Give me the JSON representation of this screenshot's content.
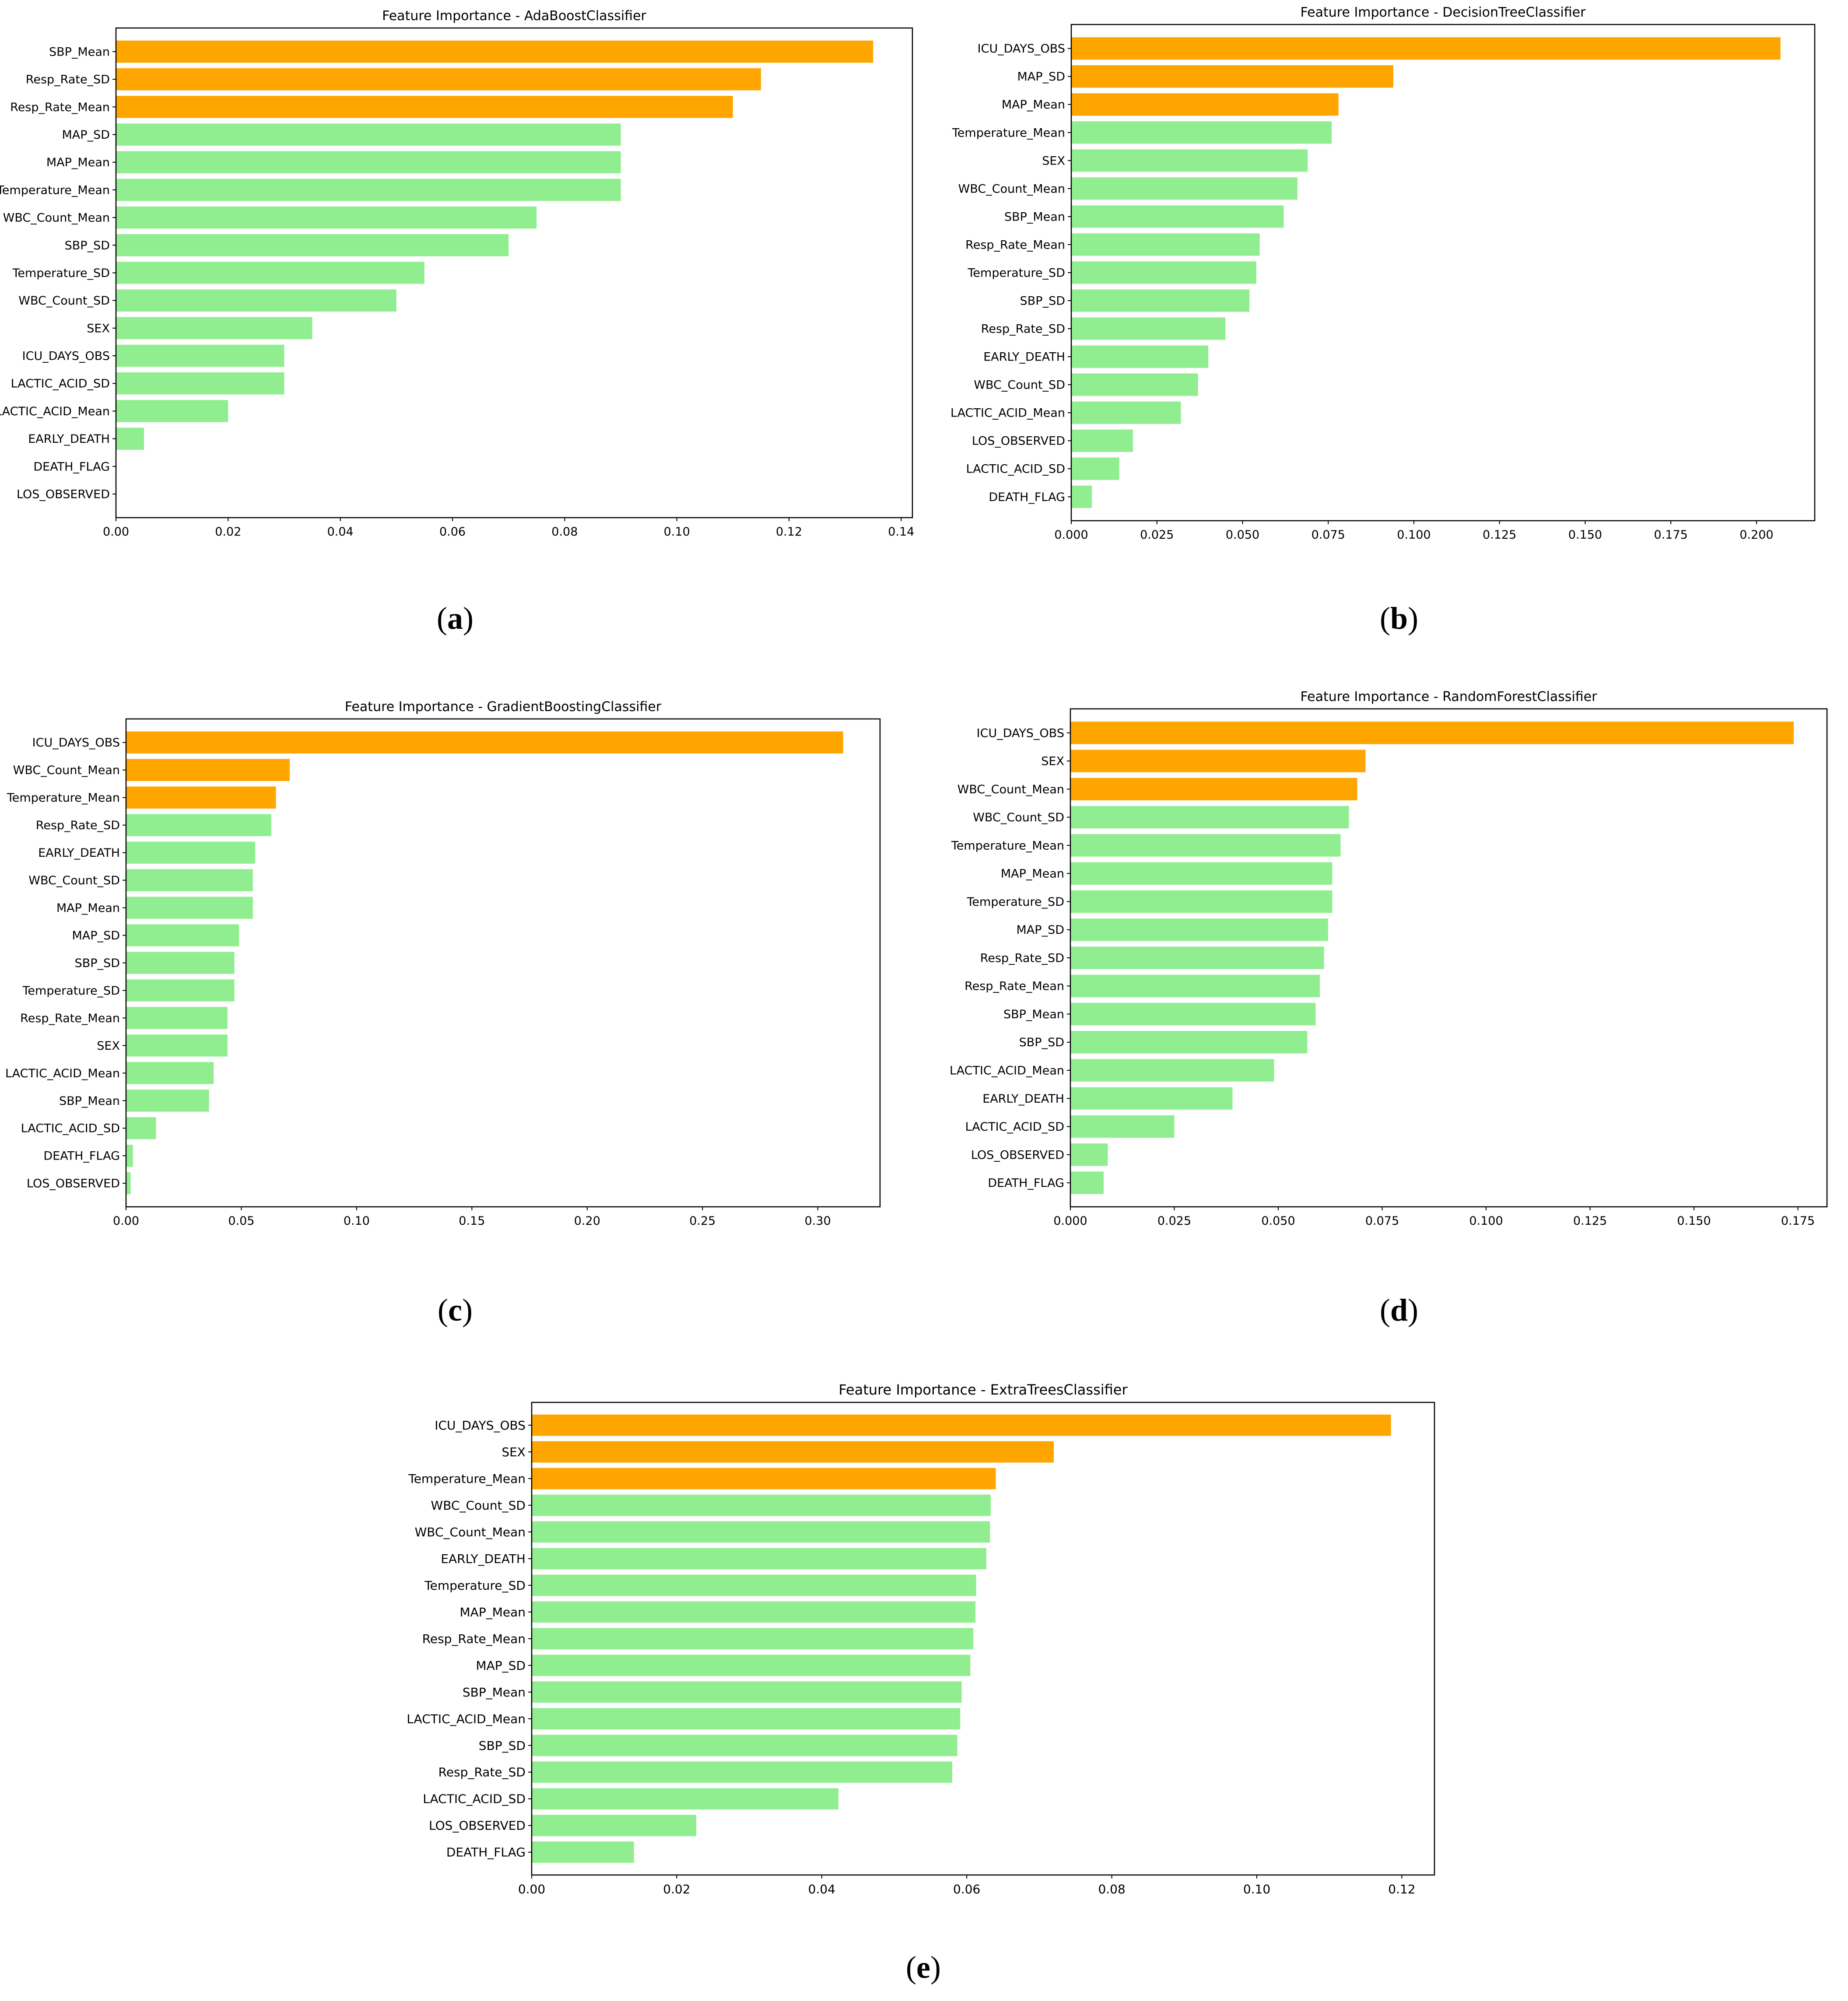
{
  "figure": {
    "captions": [
      "a",
      "b",
      "c",
      "d",
      "e"
    ]
  },
  "colors": {
    "highlight": "#FFA500",
    "normal": "#90EE90",
    "frame": "#000000",
    "text": "#000000"
  },
  "chart_data": [
    {
      "id": "a",
      "type": "bar",
      "orientation": "horizontal",
      "title": "Feature Importance - AdaBoostClassifier",
      "xlabel": "",
      "ylabel": "",
      "xlim": [
        0,
        0.142
      ],
      "xticks": [
        0.0,
        0.02,
        0.04,
        0.06,
        0.08,
        0.1,
        0.12,
        0.14
      ],
      "tick_decimals": 2,
      "categories": [
        "SBP_Mean",
        "Resp_Rate_SD",
        "Resp_Rate_Mean",
        "MAP_SD",
        "MAP_Mean",
        "Temperature_Mean",
        "WBC_Count_Mean",
        "SBP_SD",
        "Temperature_SD",
        "WBC_Count_SD",
        "SEX",
        "ICU_DAYS_OBS",
        "LACTIC_ACID_SD",
        "LACTIC_ACID_Mean",
        "EARLY_DEATH",
        "DEATH_FLAG",
        "LOS_OBSERVED"
      ],
      "values": [
        0.135,
        0.115,
        0.11,
        0.09,
        0.09,
        0.09,
        0.075,
        0.07,
        0.055,
        0.05,
        0.035,
        0.03,
        0.03,
        0.02,
        0.005,
        0.0,
        0.0
      ],
      "highlight_top": 3,
      "grid": false
    },
    {
      "id": "b",
      "type": "bar",
      "orientation": "horizontal",
      "title": "Feature Importance - DecisionTreeClassifier",
      "xlabel": "",
      "ylabel": "",
      "xlim": [
        0,
        0.217
      ],
      "xticks": [
        0.0,
        0.025,
        0.05,
        0.075,
        0.1,
        0.125,
        0.15,
        0.175,
        0.2
      ],
      "tick_decimals": 3,
      "categories": [
        "ICU_DAYS_OBS",
        "MAP_SD",
        "MAP_Mean",
        "Temperature_Mean",
        "SEX",
        "WBC_Count_Mean",
        "SBP_Mean",
        "Resp_Rate_Mean",
        "Temperature_SD",
        "SBP_SD",
        "Resp_Rate_SD",
        "EARLY_DEATH",
        "WBC_Count_SD",
        "LACTIC_ACID_Mean",
        "LOS_OBSERVED",
        "LACTIC_ACID_SD",
        "DEATH_FLAG"
      ],
      "values": [
        0.207,
        0.094,
        0.078,
        0.076,
        0.069,
        0.066,
        0.062,
        0.055,
        0.054,
        0.052,
        0.045,
        0.04,
        0.037,
        0.032,
        0.018,
        0.014,
        0.006
      ],
      "highlight_top": 3,
      "grid": false
    },
    {
      "id": "c",
      "type": "bar",
      "orientation": "horizontal",
      "title": "Feature Importance - GradientBoostingClassifier",
      "xlabel": "",
      "ylabel": "",
      "xlim": [
        0,
        0.327
      ],
      "xticks": [
        0.0,
        0.05,
        0.1,
        0.15,
        0.2,
        0.25,
        0.3
      ],
      "tick_decimals": 2,
      "categories": [
        "ICU_DAYS_OBS",
        "WBC_Count_Mean",
        "Temperature_Mean",
        "Resp_Rate_SD",
        "EARLY_DEATH",
        "WBC_Count_SD",
        "MAP_Mean",
        "MAP_SD",
        "SBP_SD",
        "Temperature_SD",
        "Resp_Rate_Mean",
        "SEX",
        "LACTIC_ACID_Mean",
        "SBP_Mean",
        "LACTIC_ACID_SD",
        "DEATH_FLAG",
        "LOS_OBSERVED"
      ],
      "values": [
        0.311,
        0.071,
        0.065,
        0.063,
        0.056,
        0.055,
        0.055,
        0.049,
        0.047,
        0.047,
        0.044,
        0.044,
        0.038,
        0.036,
        0.013,
        0.003,
        0.002
      ],
      "highlight_top": 3,
      "grid": false
    },
    {
      "id": "d",
      "type": "bar",
      "orientation": "horizontal",
      "title": "Feature Importance - RandomForestClassifier",
      "xlabel": "",
      "ylabel": "",
      "xlim": [
        0,
        0.182
      ],
      "xticks": [
        0.0,
        0.025,
        0.05,
        0.075,
        0.1,
        0.125,
        0.15,
        0.175
      ],
      "tick_decimals": 3,
      "categories": [
        "ICU_DAYS_OBS",
        "SEX",
        "WBC_Count_Mean",
        "WBC_Count_SD",
        "Temperature_Mean",
        "MAP_Mean",
        "Temperature_SD",
        "MAP_SD",
        "Resp_Rate_SD",
        "Resp_Rate_Mean",
        "SBP_Mean",
        "SBP_SD",
        "LACTIC_ACID_Mean",
        "EARLY_DEATH",
        "LACTIC_ACID_SD",
        "LOS_OBSERVED",
        "DEATH_FLAG"
      ],
      "values": [
        0.174,
        0.071,
        0.069,
        0.067,
        0.065,
        0.063,
        0.063,
        0.062,
        0.061,
        0.06,
        0.059,
        0.057,
        0.049,
        0.039,
        0.025,
        0.009,
        0.008
      ],
      "highlight_top": 3,
      "grid": false
    },
    {
      "id": "e",
      "type": "bar",
      "orientation": "horizontal",
      "title": "Feature Importance - ExtraTreesClassifier",
      "xlabel": "",
      "ylabel": "",
      "xlim": [
        0,
        0.1245
      ],
      "xticks": [
        0.0,
        0.02,
        0.04,
        0.06,
        0.08,
        0.1,
        0.12
      ],
      "tick_decimals": 2,
      "categories": [
        "ICU_DAYS_OBS",
        "SEX",
        "Temperature_Mean",
        "WBC_Count_SD",
        "WBC_Count_Mean",
        "EARLY_DEATH",
        "Temperature_SD",
        "MAP_Mean",
        "Resp_Rate_Mean",
        "MAP_SD",
        "SBP_Mean",
        "LACTIC_ACID_Mean",
        "SBP_SD",
        "Resp_Rate_SD",
        "LACTIC_ACID_SD",
        "LOS_OBSERVED",
        "DEATH_FLAG"
      ],
      "values": [
        0.1185,
        0.072,
        0.064,
        0.0633,
        0.0632,
        0.0627,
        0.0613,
        0.0612,
        0.0609,
        0.0605,
        0.0593,
        0.0591,
        0.0587,
        0.058,
        0.0423,
        0.0227,
        0.0141
      ],
      "highlight_top": 3,
      "grid": false
    }
  ]
}
